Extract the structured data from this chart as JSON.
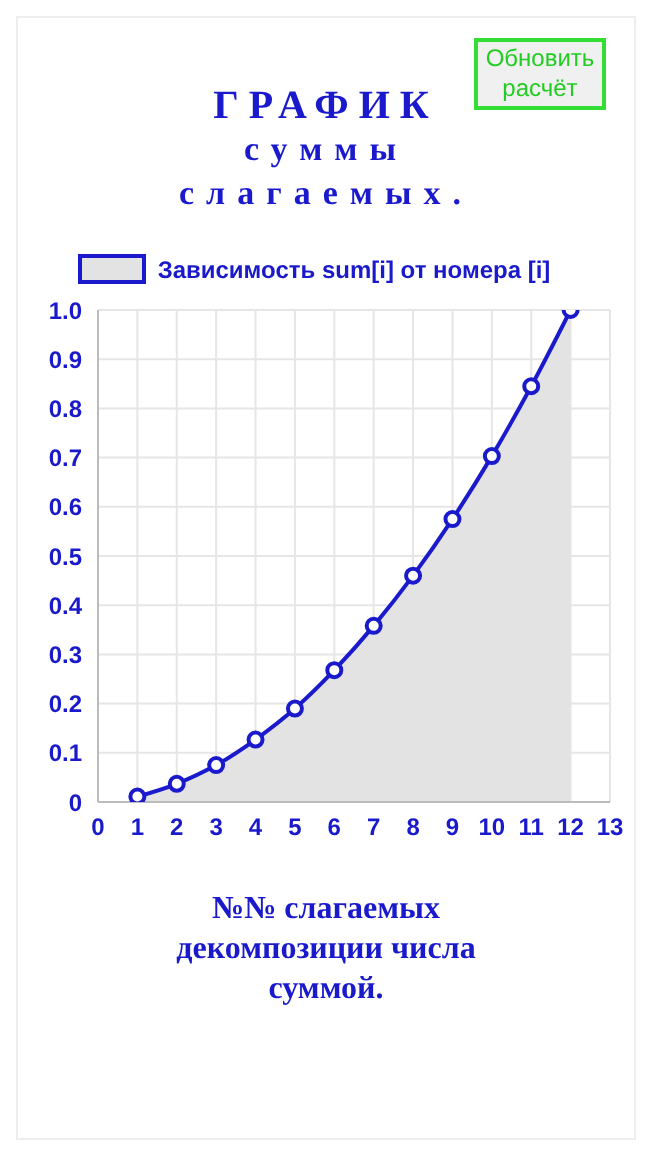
{
  "chart_data": {
    "type": "area",
    "title": "ГРАФИК суммы слагаемых.",
    "xlabel": "№№ слагаемых декомпозиции числа суммой.",
    "annotations": [
      "Обновить расчёт"
    ],
    "x": [
      1,
      2,
      3,
      4,
      5,
      6,
      7,
      8,
      9,
      10,
      11,
      12
    ],
    "series": [
      {
        "name": "Зависимость sum[i] от номера [i]",
        "color": "#1a1acc",
        "values": [
          0.011,
          0.037,
          0.075,
          0.127,
          0.19,
          0.268,
          0.358,
          0.46,
          0.575,
          0.703,
          0.845,
          1.0
        ]
      }
    ],
    "xlim": [
      0,
      13
    ],
    "xticks": [
      0,
      1,
      2,
      3,
      4,
      5,
      6,
      7,
      8,
      9,
      10,
      11,
      12,
      13
    ],
    "ylim": [
      0,
      1.0
    ],
    "yticks": [
      0,
      0.1,
      0.2,
      0.3,
      0.4,
      0.5,
      0.6,
      0.7,
      0.8,
      0.9,
      {
        "value": 1.0,
        "label": "1.0"
      }
    ],
    "grid": true,
    "legend": "top",
    "marker": "circle",
    "line_style": "solid"
  }
}
